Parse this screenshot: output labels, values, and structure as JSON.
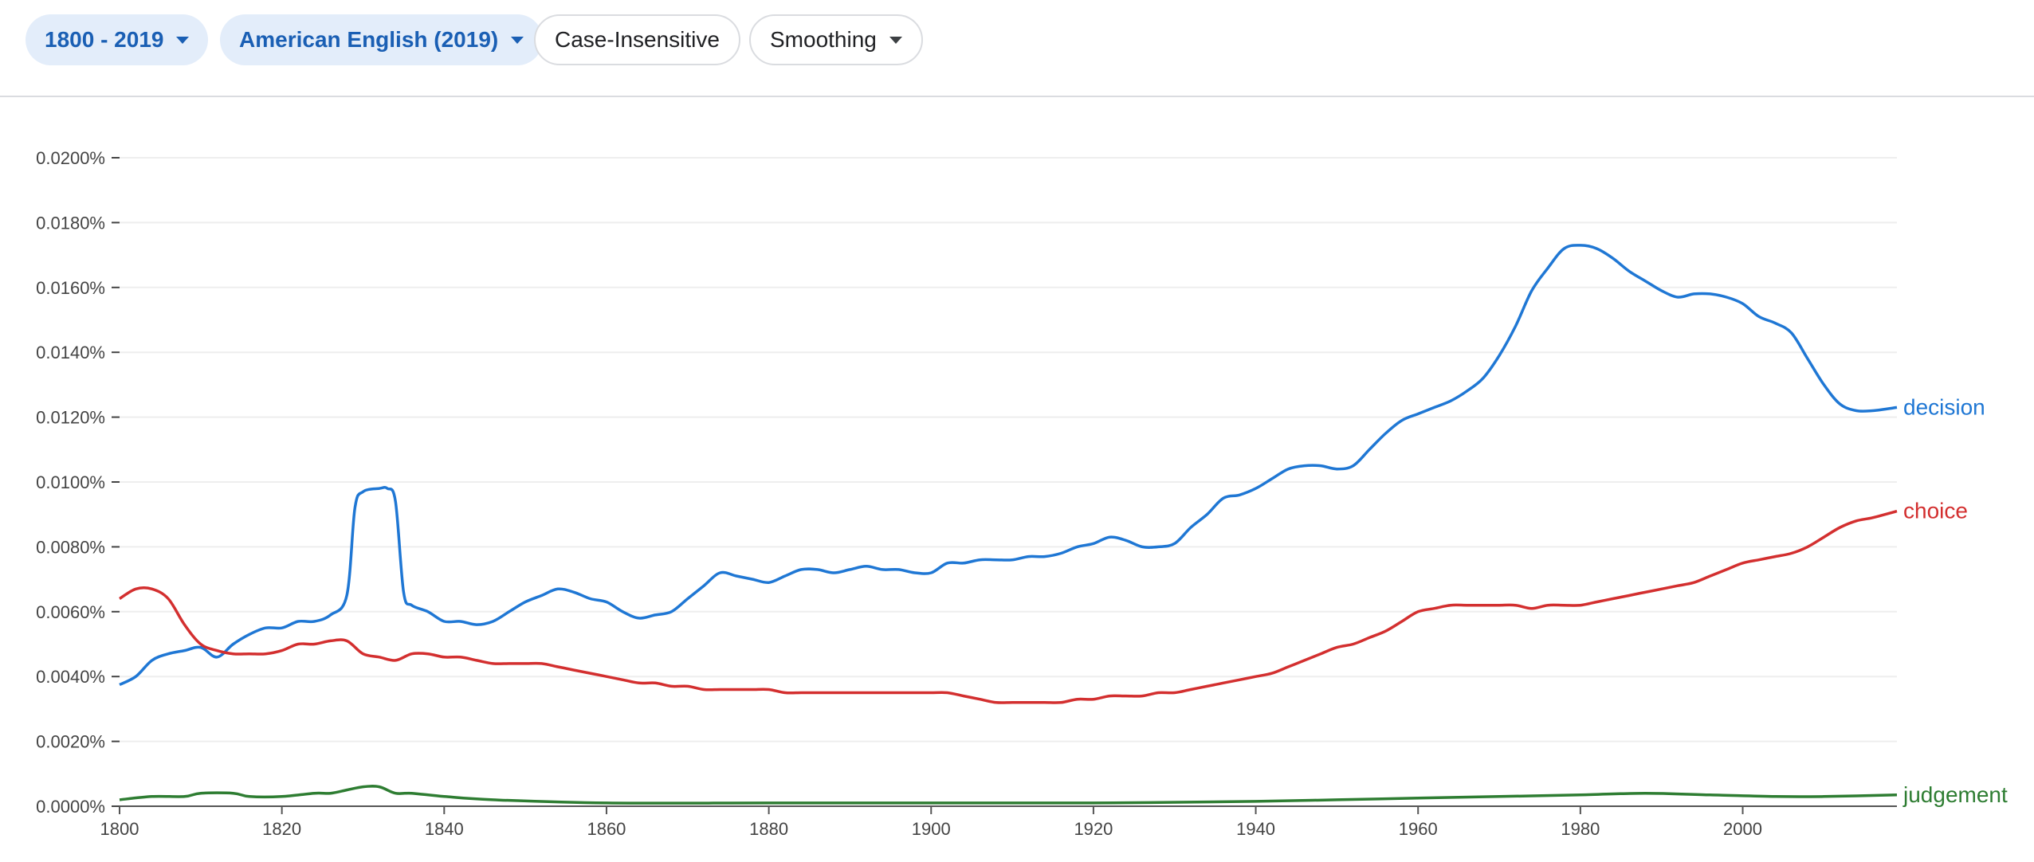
{
  "toolbar": {
    "year_range": "1800 - 2019",
    "corpus": "American English (2019)",
    "case": "Case-Insensitive",
    "smoothing": "Smoothing"
  },
  "chart_data": {
    "type": "line",
    "title": "",
    "xlabel": "",
    "ylabel": "",
    "xlim": [
      1800,
      2019
    ],
    "ylim": [
      0,
      0.02
    ],
    "x_ticks": [
      1800,
      1820,
      1840,
      1860,
      1880,
      1900,
      1920,
      1940,
      1960,
      1980,
      2000
    ],
    "x_tick_labels": [
      "1800",
      "1820",
      "1840",
      "1860",
      "1880",
      "1900",
      "1920",
      "1940",
      "1960",
      "1980",
      "2000"
    ],
    "y_ticks": [
      0,
      0.002,
      0.004,
      0.006,
      0.008,
      0.01,
      0.012,
      0.014,
      0.016,
      0.018,
      0.02
    ],
    "y_tick_labels": [
      "0.0000%",
      "0.0020%",
      "0.0040%",
      "0.0060%",
      "0.0080%",
      "0.0100%",
      "0.0120%",
      "0.0140%",
      "0.0160%",
      "0.0180%",
      "0.0200%"
    ],
    "y_unit": "percent",
    "grid": true,
    "legend": "labels at line ends (right)",
    "series": [
      {
        "name": "decision",
        "color": "#1f77d4",
        "points": [
          [
            1800,
            0.00375
          ],
          [
            1802,
            0.004
          ],
          [
            1804,
            0.0045
          ],
          [
            1806,
            0.0047
          ],
          [
            1808,
            0.0048
          ],
          [
            1810,
            0.0049
          ],
          [
            1812,
            0.0046
          ],
          [
            1814,
            0.005
          ],
          [
            1816,
            0.0053
          ],
          [
            1818,
            0.0055
          ],
          [
            1820,
            0.0055
          ],
          [
            1822,
            0.0057
          ],
          [
            1824,
            0.0057
          ],
          [
            1826,
            0.0059
          ],
          [
            1828,
            0.0065
          ],
          [
            1829,
            0.0092
          ],
          [
            1830,
            0.0097
          ],
          [
            1832,
            0.0098
          ],
          [
            1833,
            0.0098
          ],
          [
            1834,
            0.0094
          ],
          [
            1835,
            0.0066
          ],
          [
            1836,
            0.0062
          ],
          [
            1838,
            0.006
          ],
          [
            1840,
            0.0057
          ],
          [
            1842,
            0.0057
          ],
          [
            1844,
            0.0056
          ],
          [
            1846,
            0.0057
          ],
          [
            1848,
            0.006
          ],
          [
            1850,
            0.0063
          ],
          [
            1852,
            0.0065
          ],
          [
            1854,
            0.0067
          ],
          [
            1856,
            0.0066
          ],
          [
            1858,
            0.0064
          ],
          [
            1860,
            0.0063
          ],
          [
            1862,
            0.006
          ],
          [
            1864,
            0.0058
          ],
          [
            1866,
            0.0059
          ],
          [
            1868,
            0.006
          ],
          [
            1870,
            0.0064
          ],
          [
            1872,
            0.0068
          ],
          [
            1874,
            0.0072
          ],
          [
            1876,
            0.0071
          ],
          [
            1878,
            0.007
          ],
          [
            1880,
            0.0069
          ],
          [
            1882,
            0.0071
          ],
          [
            1884,
            0.0073
          ],
          [
            1886,
            0.0073
          ],
          [
            1888,
            0.0072
          ],
          [
            1890,
            0.0073
          ],
          [
            1892,
            0.0074
          ],
          [
            1894,
            0.0073
          ],
          [
            1896,
            0.0073
          ],
          [
            1898,
            0.0072
          ],
          [
            1900,
            0.0072
          ],
          [
            1902,
            0.0075
          ],
          [
            1904,
            0.0075
          ],
          [
            1906,
            0.0076
          ],
          [
            1908,
            0.0076
          ],
          [
            1910,
            0.0076
          ],
          [
            1912,
            0.0077
          ],
          [
            1914,
            0.0077
          ],
          [
            1916,
            0.0078
          ],
          [
            1918,
            0.008
          ],
          [
            1920,
            0.0081
          ],
          [
            1922,
            0.0083
          ],
          [
            1924,
            0.0082
          ],
          [
            1926,
            0.008
          ],
          [
            1928,
            0.008
          ],
          [
            1930,
            0.0081
          ],
          [
            1932,
            0.0086
          ],
          [
            1934,
            0.009
          ],
          [
            1936,
            0.0095
          ],
          [
            1938,
            0.0096
          ],
          [
            1940,
            0.0098
          ],
          [
            1942,
            0.0101
          ],
          [
            1944,
            0.0104
          ],
          [
            1946,
            0.0105
          ],
          [
            1948,
            0.0105
          ],
          [
            1950,
            0.0104
          ],
          [
            1952,
            0.0105
          ],
          [
            1954,
            0.011
          ],
          [
            1956,
            0.0115
          ],
          [
            1958,
            0.0119
          ],
          [
            1960,
            0.0121
          ],
          [
            1962,
            0.0123
          ],
          [
            1964,
            0.0125
          ],
          [
            1966,
            0.0128
          ],
          [
            1968,
            0.0132
          ],
          [
            1970,
            0.0139
          ],
          [
            1972,
            0.0148
          ],
          [
            1974,
            0.0159
          ],
          [
            1976,
            0.0166
          ],
          [
            1978,
            0.0172
          ],
          [
            1980,
            0.0173
          ],
          [
            1982,
            0.0172
          ],
          [
            1984,
            0.0169
          ],
          [
            1986,
            0.0165
          ],
          [
            1988,
            0.0162
          ],
          [
            1990,
            0.0159
          ],
          [
            1992,
            0.0157
          ],
          [
            1994,
            0.0158
          ],
          [
            1996,
            0.0158
          ],
          [
            1998,
            0.0157
          ],
          [
            2000,
            0.0155
          ],
          [
            2002,
            0.0151
          ],
          [
            2004,
            0.0149
          ],
          [
            2006,
            0.0146
          ],
          [
            2008,
            0.0138
          ],
          [
            2010,
            0.013
          ],
          [
            2012,
            0.0124
          ],
          [
            2014,
            0.0122
          ],
          [
            2016,
            0.0122
          ],
          [
            2019,
            0.0123
          ]
        ]
      },
      {
        "name": "choice",
        "color": "#d32f2f",
        "points": [
          [
            1800,
            0.0064
          ],
          [
            1802,
            0.0067
          ],
          [
            1804,
            0.0067
          ],
          [
            1806,
            0.0064
          ],
          [
            1808,
            0.0056
          ],
          [
            1810,
            0.005
          ],
          [
            1812,
            0.0048
          ],
          [
            1814,
            0.0047
          ],
          [
            1816,
            0.0047
          ],
          [
            1818,
            0.0047
          ],
          [
            1820,
            0.0048
          ],
          [
            1822,
            0.005
          ],
          [
            1824,
            0.005
          ],
          [
            1826,
            0.0051
          ],
          [
            1828,
            0.0051
          ],
          [
            1830,
            0.0047
          ],
          [
            1832,
            0.0046
          ],
          [
            1834,
            0.0045
          ],
          [
            1836,
            0.0047
          ],
          [
            1838,
            0.0047
          ],
          [
            1840,
            0.0046
          ],
          [
            1842,
            0.0046
          ],
          [
            1844,
            0.0045
          ],
          [
            1846,
            0.0044
          ],
          [
            1848,
            0.0044
          ],
          [
            1850,
            0.0044
          ],
          [
            1852,
            0.0044
          ],
          [
            1854,
            0.0043
          ],
          [
            1856,
            0.0042
          ],
          [
            1858,
            0.0041
          ],
          [
            1860,
            0.004
          ],
          [
            1862,
            0.0039
          ],
          [
            1864,
            0.0038
          ],
          [
            1866,
            0.0038
          ],
          [
            1868,
            0.0037
          ],
          [
            1870,
            0.0037
          ],
          [
            1872,
            0.0036
          ],
          [
            1874,
            0.0036
          ],
          [
            1876,
            0.0036
          ],
          [
            1878,
            0.0036
          ],
          [
            1880,
            0.0036
          ],
          [
            1882,
            0.0035
          ],
          [
            1884,
            0.0035
          ],
          [
            1886,
            0.0035
          ],
          [
            1888,
            0.0035
          ],
          [
            1890,
            0.0035
          ],
          [
            1892,
            0.0035
          ],
          [
            1894,
            0.0035
          ],
          [
            1896,
            0.0035
          ],
          [
            1898,
            0.0035
          ],
          [
            1900,
            0.0035
          ],
          [
            1902,
            0.0035
          ],
          [
            1904,
            0.0034
          ],
          [
            1906,
            0.0033
          ],
          [
            1908,
            0.0032
          ],
          [
            1910,
            0.0032
          ],
          [
            1912,
            0.0032
          ],
          [
            1914,
            0.0032
          ],
          [
            1916,
            0.0032
          ],
          [
            1918,
            0.0033
          ],
          [
            1920,
            0.0033
          ],
          [
            1922,
            0.0034
          ],
          [
            1924,
            0.0034
          ],
          [
            1926,
            0.0034
          ],
          [
            1928,
            0.0035
          ],
          [
            1930,
            0.0035
          ],
          [
            1932,
            0.0036
          ],
          [
            1934,
            0.0037
          ],
          [
            1936,
            0.0038
          ],
          [
            1938,
            0.0039
          ],
          [
            1940,
            0.004
          ],
          [
            1942,
            0.0041
          ],
          [
            1944,
            0.0043
          ],
          [
            1946,
            0.0045
          ],
          [
            1948,
            0.0047
          ],
          [
            1950,
            0.0049
          ],
          [
            1952,
            0.005
          ],
          [
            1954,
            0.0052
          ],
          [
            1956,
            0.0054
          ],
          [
            1958,
            0.0057
          ],
          [
            1960,
            0.006
          ],
          [
            1962,
            0.0061
          ],
          [
            1964,
            0.0062
          ],
          [
            1966,
            0.0062
          ],
          [
            1968,
            0.0062
          ],
          [
            1970,
            0.0062
          ],
          [
            1972,
            0.0062
          ],
          [
            1974,
            0.0061
          ],
          [
            1976,
            0.0062
          ],
          [
            1978,
            0.0062
          ],
          [
            1980,
            0.0062
          ],
          [
            1982,
            0.0063
          ],
          [
            1984,
            0.0064
          ],
          [
            1986,
            0.0065
          ],
          [
            1988,
            0.0066
          ],
          [
            1990,
            0.0067
          ],
          [
            1992,
            0.0068
          ],
          [
            1994,
            0.0069
          ],
          [
            1996,
            0.0071
          ],
          [
            1998,
            0.0073
          ],
          [
            2000,
            0.0075
          ],
          [
            2002,
            0.0076
          ],
          [
            2004,
            0.0077
          ],
          [
            2006,
            0.0078
          ],
          [
            2008,
            0.008
          ],
          [
            2010,
            0.0083
          ],
          [
            2012,
            0.0086
          ],
          [
            2014,
            0.0088
          ],
          [
            2016,
            0.0089
          ],
          [
            2019,
            0.0091
          ]
        ]
      },
      {
        "name": "judgement",
        "color": "#2e7d32",
        "points": [
          [
            1800,
            0.0002
          ],
          [
            1804,
            0.0003
          ],
          [
            1808,
            0.0003
          ],
          [
            1810,
            0.0004
          ],
          [
            1814,
            0.0004
          ],
          [
            1816,
            0.0003
          ],
          [
            1820,
            0.0003
          ],
          [
            1824,
            0.0004
          ],
          [
            1826,
            0.0004
          ],
          [
            1828,
            0.0005
          ],
          [
            1830,
            0.0006
          ],
          [
            1832,
            0.0006
          ],
          [
            1834,
            0.0004
          ],
          [
            1836,
            0.0004
          ],
          [
            1840,
            0.0003
          ],
          [
            1846,
            0.0002
          ],
          [
            1860,
            0.0001
          ],
          [
            1880,
            0.0001
          ],
          [
            1900,
            0.0001
          ],
          [
            1920,
            0.0001
          ],
          [
            1940,
            0.00015
          ],
          [
            1950,
            0.0002
          ],
          [
            1960,
            0.00025
          ],
          [
            1970,
            0.0003
          ],
          [
            1980,
            0.00035
          ],
          [
            1988,
            0.0004
          ],
          [
            1996,
            0.00035
          ],
          [
            2004,
            0.0003
          ],
          [
            2010,
            0.0003
          ],
          [
            2019,
            0.00035
          ]
        ]
      }
    ]
  }
}
